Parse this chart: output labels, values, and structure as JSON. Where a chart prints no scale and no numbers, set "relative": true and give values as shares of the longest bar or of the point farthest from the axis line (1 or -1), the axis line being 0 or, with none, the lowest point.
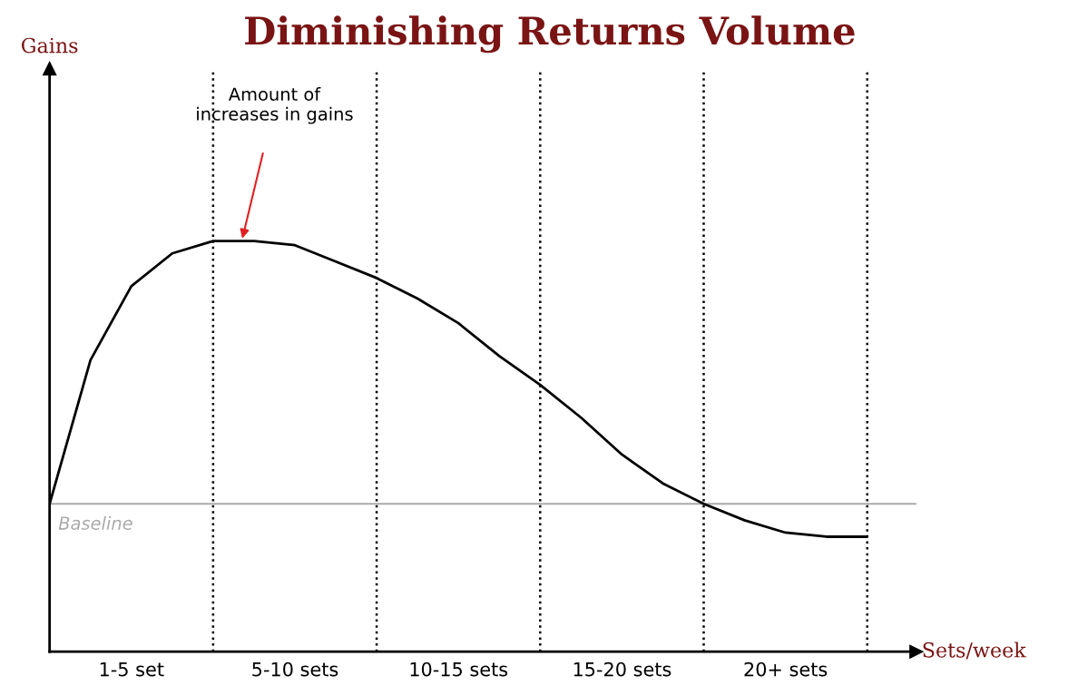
{
  "chart_data": {
    "type": "line",
    "title": "Diminishing Returns Volume",
    "xlabel": "Sets/week",
    "relative": true,
    "grid": "x",
    "categories": [
      null,
      null,
      "1-5 set",
      null,
      null,
      null,
      "5-10 sets",
      null,
      null,
      null,
      "10-15 sets",
      null,
      null,
      null,
      "15-20 sets",
      null,
      null,
      null,
      "20+ sets",
      null,
      null
    ],
    "series": [
      {
        "color": "#000000",
        "values": [
          0.36,
          0.71,
          0.89,
          0.97,
          1.0,
          1.0,
          0.99,
          0.95,
          0.91,
          0.86,
          0.8,
          0.72,
          0.65,
          0.57,
          0.48,
          0.41,
          0.36,
          0.32,
          0.29,
          0.28,
          0.28
        ]
      }
    ],
    "ref_lines": [
      {
        "axis": "y",
        "value": 0.36,
        "label": "Baseline",
        "color": "#aaaaaa",
        "line_style": "solid"
      }
    ],
    "annotations": [
      "Amount of\nincreases in gains",
      "Gains"
    ],
    "legend": false,
    "marker": "none",
    "line_style": "solid"
  }
}
